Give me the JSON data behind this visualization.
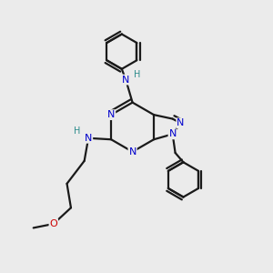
{
  "bg_color": "#ebebeb",
  "bond_color": "#1a1a1a",
  "N_color": "#0000cc",
  "O_color": "#cc0000",
  "H_color": "#2d8c8c",
  "line_width": 1.6,
  "figsize": [
    3.0,
    3.0
  ],
  "dpi": 100,
  "xlim": [
    0,
    10
  ],
  "ylim": [
    0,
    10
  ]
}
